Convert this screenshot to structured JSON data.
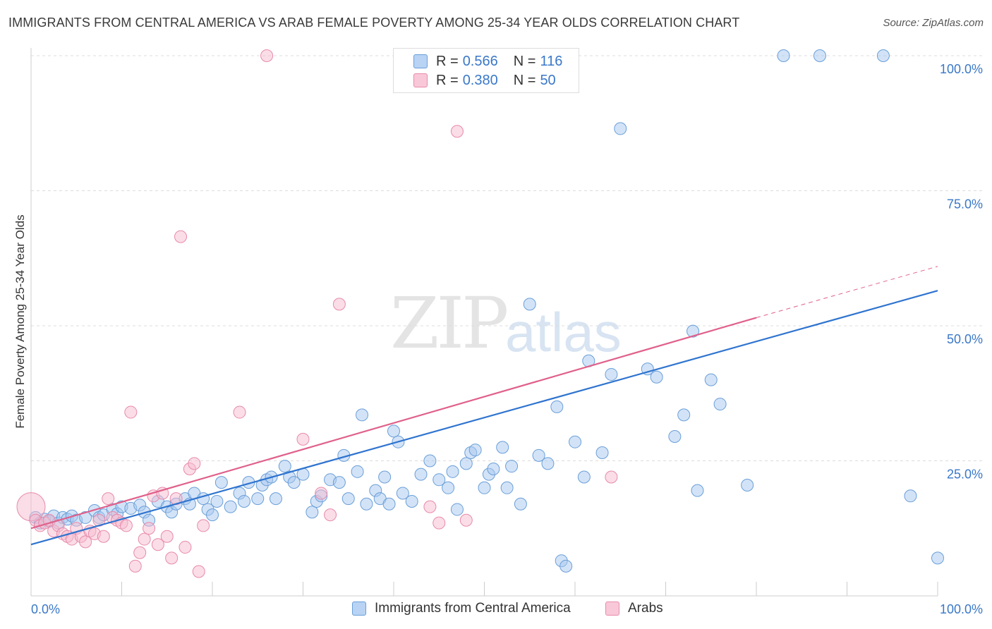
{
  "header": {
    "title": "IMMIGRANTS FROM CENTRAL AMERICA VS ARAB FEMALE POVERTY AMONG 25-34 YEAR OLDS CORRELATION CHART",
    "source": "Source: ZipAtlas.com"
  },
  "watermark": {
    "zip": "ZIP",
    "atlas": "atlas"
  },
  "legend": {
    "r_label": "R =",
    "n_label": "N =",
    "series": [
      {
        "r": "0.566",
        "n": "116"
      },
      {
        "r": "0.380",
        "n": "50"
      }
    ]
  },
  "colors": {
    "blue_fill": "#a8c8f0",
    "blue_stroke": "#6a9fd8",
    "blue_line": "#2f74cf",
    "pink_fill": "#f6bcd0",
    "pink_stroke": "#e88aab",
    "pink_line": "#e0608a",
    "axis_label": "#3a78c8",
    "grid": "#dcdcdc"
  },
  "chart_data": {
    "type": "scatter",
    "title": "IMMIGRANTS FROM CENTRAL AMERICA VS ARAB FEMALE POVERTY AMONG 25-34 YEAR OLDS CORRELATION CHART",
    "xlabel": "",
    "ylabel": "Female Poverty Among 25-34 Year Olds",
    "xlim": [
      0,
      100
    ],
    "ylim": [
      0,
      100
    ],
    "x_tick_labels": [
      "0.0%",
      "100.0%"
    ],
    "y_tick_labels": [
      "25.0%",
      "50.0%",
      "75.0%",
      "100.0%"
    ],
    "y_ticks": [
      25,
      50,
      75,
      100
    ],
    "grid": true,
    "legend_position": "top-center",
    "series": [
      {
        "name": "Immigrants from Central America",
        "r": 0.566,
        "n": 116,
        "trend": {
          "x": [
            0,
            100
          ],
          "y": [
            9.5,
            56.5
          ]
        },
        "points": [
          [
            0.5,
            14.5
          ],
          [
            1.0,
            13.5
          ],
          [
            1.5,
            14.2
          ],
          [
            2.0,
            13.8
          ],
          [
            2.5,
            14.8
          ],
          [
            3.0,
            13.5
          ],
          [
            3.5,
            14.5
          ],
          [
            4.0,
            14.2
          ],
          [
            4.5,
            14.8
          ],
          [
            5.0,
            14.0
          ],
          [
            6.0,
            14.5
          ],
          [
            7.0,
            15.8
          ],
          [
            7.5,
            14.5
          ],
          [
            8.0,
            15.0
          ],
          [
            9.0,
            16.0
          ],
          [
            9.5,
            15.2
          ],
          [
            10.0,
            16.5
          ],
          [
            11.0,
            16.2
          ],
          [
            12.0,
            16.8
          ],
          [
            12.5,
            15.5
          ],
          [
            13.0,
            14.0
          ],
          [
            14.0,
            17.5
          ],
          [
            15.0,
            16.5
          ],
          [
            15.5,
            15.5
          ],
          [
            16.0,
            17.0
          ],
          [
            17.0,
            18.0
          ],
          [
            17.5,
            17.0
          ],
          [
            18.0,
            19.0
          ],
          [
            19.0,
            18.0
          ],
          [
            19.5,
            16.0
          ],
          [
            20.0,
            15.0
          ],
          [
            20.5,
            17.5
          ],
          [
            21.0,
            21.0
          ],
          [
            22.0,
            16.5
          ],
          [
            23.0,
            19.0
          ],
          [
            23.5,
            17.5
          ],
          [
            24.0,
            21.0
          ],
          [
            25.0,
            18.0
          ],
          [
            25.5,
            20.5
          ],
          [
            26.0,
            21.5
          ],
          [
            26.5,
            22.0
          ],
          [
            27.0,
            18.0
          ],
          [
            28.0,
            24.0
          ],
          [
            28.5,
            22.0
          ],
          [
            29.0,
            21.0
          ],
          [
            30.0,
            22.5
          ],
          [
            31.0,
            15.5
          ],
          [
            31.5,
            17.5
          ],
          [
            32.0,
            18.5
          ],
          [
            33.0,
            21.5
          ],
          [
            34.0,
            21.0
          ],
          [
            34.5,
            26.0
          ],
          [
            35.0,
            18.0
          ],
          [
            36.0,
            23.0
          ],
          [
            36.5,
            33.5
          ],
          [
            37.0,
            17.0
          ],
          [
            38.0,
            19.5
          ],
          [
            38.5,
            18.0
          ],
          [
            39.0,
            22.0
          ],
          [
            39.5,
            17.0
          ],
          [
            40.0,
            30.5
          ],
          [
            40.5,
            28.5
          ],
          [
            41.0,
            19.0
          ],
          [
            42.0,
            17.5
          ],
          [
            43.0,
            22.5
          ],
          [
            44.0,
            25.0
          ],
          [
            45.0,
            21.5
          ],
          [
            46.0,
            20.0
          ],
          [
            46.5,
            23.0
          ],
          [
            47.0,
            16.0
          ],
          [
            48.0,
            24.5
          ],
          [
            48.5,
            26.5
          ],
          [
            49.0,
            27.0
          ],
          [
            50.0,
            20.0
          ],
          [
            50.5,
            22.5
          ],
          [
            51.0,
            23.5
          ],
          [
            52.0,
            27.5
          ],
          [
            52.5,
            20.0
          ],
          [
            53.0,
            24.0
          ],
          [
            54.0,
            17.0
          ],
          [
            55.0,
            54.0
          ],
          [
            56.0,
            26.0
          ],
          [
            57.0,
            24.5
          ],
          [
            58.0,
            35.0
          ],
          [
            58.5,
            6.5
          ],
          [
            59.0,
            5.5
          ],
          [
            60.0,
            28.5
          ],
          [
            61.0,
            22.0
          ],
          [
            61.5,
            43.5
          ],
          [
            63.0,
            26.5
          ],
          [
            64.0,
            41.0
          ],
          [
            65.0,
            86.5
          ],
          [
            68.0,
            42.0
          ],
          [
            69.0,
            40.5
          ],
          [
            71.0,
            29.5
          ],
          [
            72.0,
            33.5
          ],
          [
            73.0,
            49.0
          ],
          [
            73.5,
            19.5
          ],
          [
            75.0,
            40.0
          ],
          [
            76.0,
            35.5
          ],
          [
            79.0,
            20.5
          ],
          [
            83.0,
            100.0
          ],
          [
            87.0,
            100.0
          ],
          [
            94.0,
            100.0
          ],
          [
            97.0,
            18.5
          ],
          [
            100.0,
            7.0
          ]
        ]
      },
      {
        "name": "Arabs",
        "r": 0.38,
        "n": 50,
        "trend": {
          "x": [
            0,
            80
          ],
          "y": [
            12.5,
            51.5
          ]
        },
        "trend_dashed": {
          "x": [
            80,
            100
          ],
          "y": [
            51.5,
            61.0
          ]
        },
        "points": [
          [
            0.0,
            16.5
          ],
          [
            0.5,
            14.0
          ],
          [
            1.0,
            13.0
          ],
          [
            1.5,
            13.5
          ],
          [
            2.0,
            14.0
          ],
          [
            2.5,
            12.0
          ],
          [
            3.0,
            13.0
          ],
          [
            3.5,
            11.5
          ],
          [
            4.0,
            11.0
          ],
          [
            4.5,
            10.5
          ],
          [
            5.0,
            12.5
          ],
          [
            5.5,
            11.0
          ],
          [
            6.0,
            10.0
          ],
          [
            6.5,
            12.0
          ],
          [
            7.0,
            11.5
          ],
          [
            7.5,
            14.0
          ],
          [
            8.0,
            11.0
          ],
          [
            8.5,
            18.0
          ],
          [
            9.0,
            14.5
          ],
          [
            9.5,
            14.0
          ],
          [
            10.0,
            13.5
          ],
          [
            10.5,
            13.0
          ],
          [
            11.0,
            34.0
          ],
          [
            11.5,
            5.5
          ],
          [
            12.0,
            8.0
          ],
          [
            12.5,
            10.5
          ],
          [
            13.0,
            12.5
          ],
          [
            13.5,
            18.5
          ],
          [
            14.0,
            9.5
          ],
          [
            14.5,
            19.0
          ],
          [
            15.0,
            11.0
          ],
          [
            15.5,
            7.0
          ],
          [
            16.0,
            18.0
          ],
          [
            16.5,
            66.5
          ],
          [
            17.0,
            9.0
          ],
          [
            17.5,
            23.5
          ],
          [
            18.0,
            24.5
          ],
          [
            18.5,
            4.5
          ],
          [
            19.0,
            13.0
          ],
          [
            23.0,
            34.0
          ],
          [
            26.0,
            100.0
          ],
          [
            30.0,
            29.0
          ],
          [
            32.0,
            19.0
          ],
          [
            33.0,
            15.0
          ],
          [
            34.0,
            54.0
          ],
          [
            44.0,
            16.5
          ],
          [
            45.0,
            13.5
          ],
          [
            47.0,
            86.0
          ],
          [
            48.0,
            14.0
          ],
          [
            64.0,
            22.0
          ]
        ]
      }
    ]
  }
}
